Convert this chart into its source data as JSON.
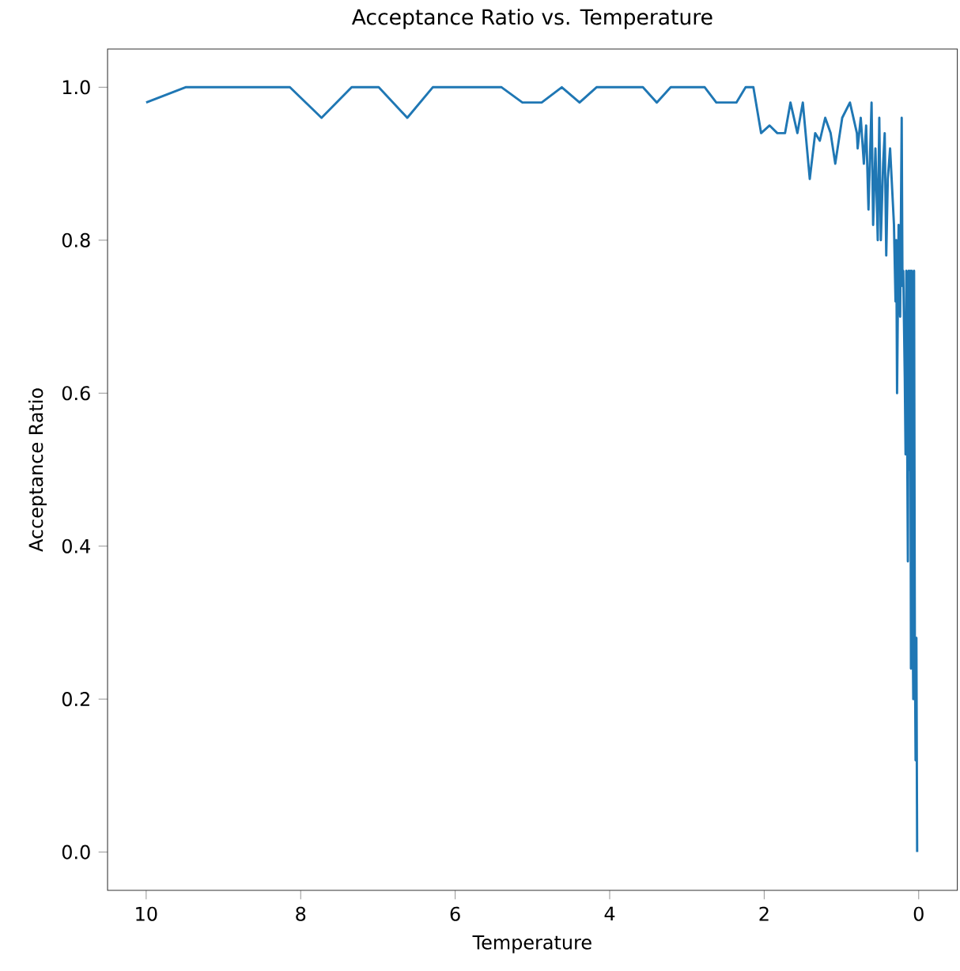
{
  "chart_data": {
    "type": "line",
    "title": "Acceptance Ratio vs. Temperature",
    "xlabel": "Temperature",
    "ylabel": "Acceptance Ratio",
    "xlim": [
      10.5,
      -0.5
    ],
    "xticks": [
      10,
      8,
      6,
      4,
      2,
      0
    ],
    "ylim": [
      -0.05,
      1.05
    ],
    "yticks": [
      {
        "value": 0,
        "label": "0.0"
      },
      {
        "value": 0.2,
        "label": "0.2"
      },
      {
        "value": 0.4,
        "label": "0.4"
      },
      {
        "value": 0.6,
        "label": "0.6"
      },
      {
        "value": 0.8,
        "label": "0.8"
      },
      {
        "value": 1.0,
        "label": "1.0"
      }
    ],
    "marker": "none",
    "line_style": "solid",
    "x": [
      10,
      9.49,
      8.14,
      7.73,
      7.34,
      6.99,
      6.62,
      6.29,
      5.4,
      5.13,
      4.88,
      4.62,
      4.39,
      4.17,
      3.57,
      3.39,
      3.21,
      2.77,
      2.62,
      2.36,
      2.24,
      2.14,
      2.04,
      1.93,
      1.83,
      1.73,
      1.66,
      1.57,
      1.5,
      1.41,
      1.34,
      1.28,
      1.21,
      1.14,
      1.08,
      0.99,
      0.89,
      0.8,
      0.79,
      0.75,
      0.71,
      0.68,
      0.65,
      0.61,
      0.59,
      0.56,
      0.53,
      0.51,
      0.49,
      0.46,
      0.44,
      0.42,
      0.4,
      0.37,
      0.34,
      0.32,
      0.3,
      0.29,
      0.28,
      0.26,
      0.24,
      0.22,
      0.21,
      0.2,
      0.18,
      0.17,
      0.16,
      0.15,
      0.14,
      0.13,
      0.12,
      0.11,
      0.1,
      0.09,
      0.08,
      0.07,
      0.06,
      0.05,
      0.04,
      0.03,
      0.02
    ],
    "series": [
      {
        "color": "#1f77b4",
        "values": [
          0.98,
          1.0,
          1.0,
          0.96,
          1.0,
          1.0,
          0.96,
          1.0,
          1.0,
          0.98,
          0.98,
          1.0,
          0.98,
          1.0,
          1.0,
          0.98,
          1.0,
          1.0,
          0.98,
          0.98,
          1.0,
          1.0,
          0.94,
          0.95,
          0.94,
          0.94,
          0.98,
          0.94,
          0.98,
          0.88,
          0.94,
          0.93,
          0.96,
          0.94,
          0.9,
          0.96,
          0.98,
          0.94,
          0.92,
          0.96,
          0.9,
          0.95,
          0.84,
          0.98,
          0.82,
          0.92,
          0.8,
          0.96,
          0.8,
          0.9,
          0.94,
          0.78,
          0.88,
          0.92,
          0.86,
          0.82,
          0.72,
          0.8,
          0.6,
          0.82,
          0.7,
          0.96,
          0.74,
          0.76,
          0.62,
          0.52,
          0.76,
          0.56,
          0.38,
          0.76,
          0.5,
          0.76,
          0.24,
          0.76,
          0.32,
          0.2,
          0.76,
          0.28,
          0.12,
          0.28,
          0.0
        ]
      }
    ]
  }
}
